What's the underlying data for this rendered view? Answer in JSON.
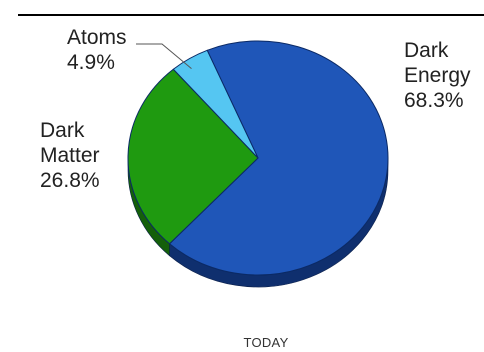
{
  "chart_data": {
    "type": "pie",
    "title": "",
    "caption": "TODAY",
    "slices": [
      {
        "name": "Dark Energy",
        "name_lines": [
          "Dark",
          "Energy"
        ],
        "value": 68.3,
        "value_label": "68.3%",
        "color": "#1f56b8",
        "side_color": "#0f2f6e"
      },
      {
        "name": "Dark Matter",
        "name_lines": [
          "Dark",
          "Matter"
        ],
        "value": 26.8,
        "value_label": "26.8%",
        "color": "#1f9a10",
        "side_color": "#145f0a"
      },
      {
        "name": "Atoms",
        "name_lines": [
          "Atoms"
        ],
        "value": 4.9,
        "value_label": "4.9%",
        "color": "#55c6f2",
        "side_color": "#2b7ea3"
      }
    ],
    "style": "3d-tilted",
    "legend": "none"
  }
}
